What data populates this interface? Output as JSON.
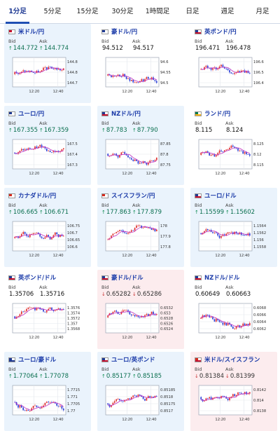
{
  "tabs": [
    "1分足",
    "5分足",
    "15分足",
    "30分足",
    "1時間足",
    "日足",
    "週足",
    "月足"
  ],
  "active_tab": 0,
  "bid_label": "Bid",
  "ask_label": "Ask",
  "x_ticks": [
    "12:20",
    "12:40"
  ],
  "colors": {
    "up_candle": "#e03030",
    "down_candle": "#2c3fd6",
    "ma_line": "#c030c0",
    "up_bg": "#eaf3fc",
    "down_bg": "#fcecee"
  },
  "cards": [
    {
      "pair": "米ドル/円",
      "trend": "up",
      "bid": "144.772",
      "ask": "144.774",
      "y_ticks": [
        "144.8",
        "144.8",
        "144.7"
      ],
      "flag": [
        "#c8102e",
        "#ffffff"
      ]
    },
    {
      "pair": "豪ドル/円",
      "trend": "flat",
      "bid": "94.512",
      "ask": "94.517",
      "y_ticks": [
        "94.6",
        "94.55",
        "94.5"
      ],
      "flag": [
        "#1f3a93",
        "#ffffff"
      ]
    },
    {
      "pair": "英ポンド/円",
      "trend": "flat",
      "bid": "196.471",
      "ask": "196.478",
      "y_ticks": [
        "196.6",
        "196.5",
        "196.4"
      ],
      "flag": [
        "#1f3a93",
        "#c8102e"
      ]
    },
    {
      "pair": "ユーロ/円",
      "trend": "up",
      "bid": "167.355",
      "ask": "167.359",
      "y_ticks": [
        "167.5",
        "167.4",
        "167.3"
      ],
      "flag": [
        "#1f3a93",
        "#ffffff"
      ]
    },
    {
      "pair": "NZドル/円",
      "trend": "up",
      "bid": "87.783",
      "ask": "87.790",
      "y_ticks": [
        "87.85",
        "87.8",
        "87.75"
      ],
      "flag": [
        "#1f3a93",
        "#c8102e"
      ]
    },
    {
      "pair": "ランド/円",
      "trend": "flat",
      "bid": "8.115",
      "ask": "8.124",
      "y_ticks": [
        "8.125",
        "8.12",
        "8.115"
      ],
      "flag": [
        "#007a4d",
        "#ffb612"
      ]
    },
    {
      "pair": "カナダドル/円",
      "trend": "up",
      "bid": "106.665",
      "ask": "106.671",
      "y_ticks": [
        "106.75",
        "106.7",
        "106.65",
        "106.6"
      ],
      "flag": [
        "#d52b1e",
        "#ffffff"
      ]
    },
    {
      "pair": "スイスフラン/円",
      "trend": "up",
      "bid": "177.863",
      "ask": "177.879",
      "y_ticks": [
        "178",
        "177.9",
        "177.8"
      ],
      "flag": [
        "#d52b1e",
        "#ffffff"
      ]
    },
    {
      "pair": "ユーロ/ドル",
      "trend": "up",
      "bid": "1.15599",
      "ask": "1.15602",
      "y_ticks": [
        "1.1564",
        "1.1562",
        "1.156",
        "1.1558"
      ],
      "flag": [
        "#1f3a93",
        "#c8102e"
      ]
    },
    {
      "pair": "英ポンド/ドル",
      "trend": "flat",
      "bid": "1.35706",
      "ask": "1.35716",
      "y_ticks": [
        "1.3576",
        "1.3574",
        "1.3572",
        "1.357",
        "1.3568"
      ],
      "flag": [
        "#1f3a93",
        "#c8102e"
      ]
    },
    {
      "pair": "豪ドル/ドル",
      "trend": "down",
      "bid": "0.65282",
      "ask": "0.65286",
      "y_ticks": [
        "0.6532",
        "0.653",
        "0.6528",
        "0.6526",
        "0.6524"
      ],
      "flag": [
        "#1f3a93",
        "#c8102e"
      ]
    },
    {
      "pair": "NZドル/ドル",
      "trend": "flat",
      "bid": "0.60649",
      "ask": "0.60663",
      "y_ticks": [
        "0.6068",
        "0.6066",
        "0.6064",
        "0.6062"
      ],
      "flag": [
        "#1f3a93",
        "#c8102e"
      ]
    },
    {
      "pair": "ユーロ/豪ドル",
      "trend": "up",
      "bid": "1.77064",
      "ask": "1.77078",
      "y_ticks": [
        "1.7715",
        "1.771",
        "1.7705",
        "1.77"
      ],
      "flag": [
        "#1f3a93",
        "#1f3a93"
      ]
    },
    {
      "pair": "ユーロ/英ポンド",
      "trend": "up",
      "bid": "0.85177",
      "ask": "0.85185",
      "y_ticks": [
        "0.85185",
        "0.8518",
        "0.85175",
        "0.8517"
      ],
      "flag": [
        "#1f3a93",
        "#c8102e"
      ]
    },
    {
      "pair": "米ドル/スイスフラン",
      "trend": "down",
      "bid": "0.81384",
      "ask": "0.81399",
      "y_ticks": [
        "0.8142",
        "0.814",
        "0.8138"
      ],
      "flag": [
        "#d52b1e",
        "#c8102e"
      ]
    }
  ]
}
